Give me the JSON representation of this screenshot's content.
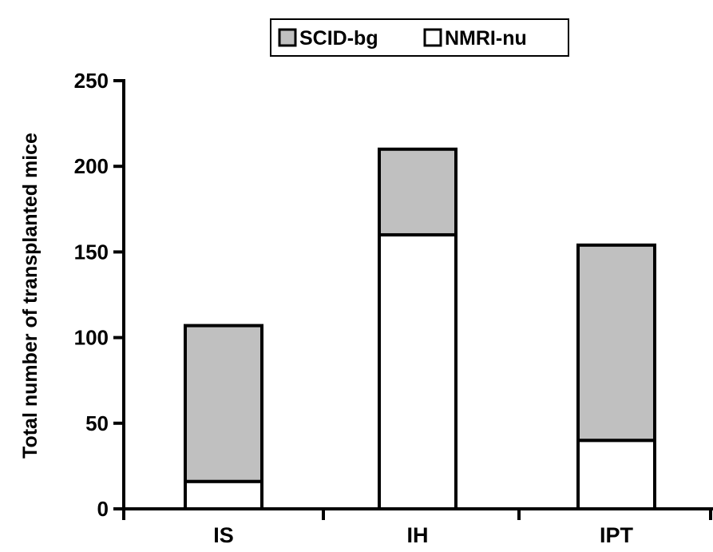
{
  "chart_data": {
    "type": "bar",
    "stacked": true,
    "categories": [
      "IS",
      "IH",
      "IPT"
    ],
    "series": [
      {
        "name": "NMRI-nu",
        "values": [
          16,
          160,
          40
        ],
        "color": "#ffffff"
      },
      {
        "name": "SCID-bg",
        "values": [
          91,
          50,
          114
        ],
        "color": "#c0c0c0"
      }
    ],
    "legend": {
      "items": [
        "SCID-bg",
        "NMRI-nu"
      ],
      "placement": "top-center"
    },
    "title": "",
    "xlabel": "",
    "ylabel": "Total number of transplanted mice",
    "ylim": [
      0,
      250
    ],
    "yticks": [
      "0",
      "50",
      "100",
      "150",
      "200",
      "250"
    ],
    "grid": false,
    "colors": {
      "axis": "#000000",
      "outline": "#000000"
    }
  }
}
